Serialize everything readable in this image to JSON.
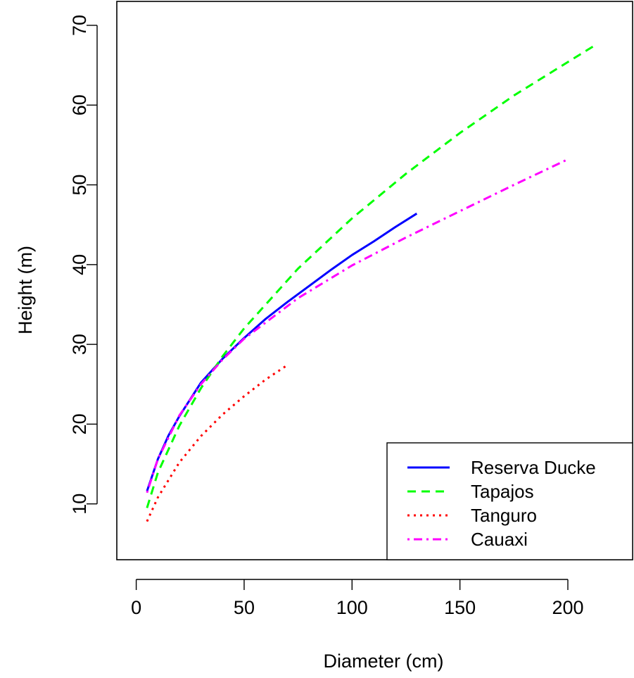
{
  "chart_data": {
    "type": "line",
    "title": "",
    "xlabel": "Diameter (cm)",
    "ylabel": "Height (m)",
    "xlim": [
      -9,
      230
    ],
    "ylim": [
      3,
      73
    ],
    "x_ticks": [
      0,
      50,
      100,
      150,
      200
    ],
    "y_ticks": [
      10,
      20,
      30,
      40,
      50,
      60,
      70
    ],
    "grid": false,
    "legend_position": "bottom-right",
    "series": [
      {
        "name": "Reserva Ducke",
        "color": "#0000ff",
        "dash": "solid",
        "x": [
          5,
          10,
          15,
          20,
          30,
          40,
          50,
          60,
          70,
          80,
          90,
          100,
          110,
          120,
          130
        ],
        "y": [
          11.6,
          15.6,
          18.6,
          21.0,
          25.2,
          28.2,
          30.8,
          33.2,
          35.3,
          37.3,
          39.3,
          41.2,
          42.9,
          44.7,
          46.4
        ]
      },
      {
        "name": "Tapajos",
        "color": "#00ff00",
        "dash": "dashed",
        "x": [
          5,
          10,
          20,
          30,
          40,
          50,
          75,
          100,
          125,
          150,
          175,
          200,
          212
        ],
        "y": [
          9.5,
          13.9,
          19.8,
          24.5,
          28.5,
          32.0,
          39.5,
          45.8,
          51.4,
          56.5,
          61.2,
          65.4,
          67.4
        ]
      },
      {
        "name": "Tanguro",
        "color": "#ff0000",
        "dash": "dotted",
        "x": [
          5,
          10,
          20,
          30,
          40,
          50,
          60,
          70
        ],
        "y": [
          7.8,
          10.8,
          15.2,
          18.5,
          21.2,
          23.5,
          25.6,
          27.4
        ]
      },
      {
        "name": "Cauaxi",
        "color": "#ff00ff",
        "dash": "dashdot",
        "x": [
          5,
          10,
          20,
          30,
          40,
          50,
          75,
          100,
          125,
          150,
          175,
          200
        ],
        "y": [
          11.4,
          15.6,
          21.1,
          25.0,
          28.1,
          30.7,
          35.8,
          39.9,
          43.4,
          46.7,
          50.0,
          53.2
        ]
      }
    ]
  }
}
